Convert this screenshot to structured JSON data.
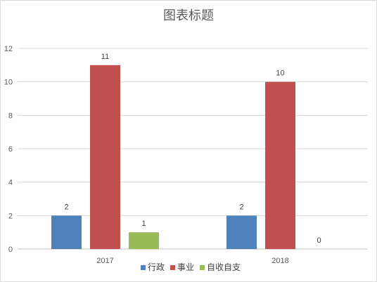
{
  "chart_data": {
    "type": "bar",
    "title": "图表标题",
    "categories": [
      "2017",
      "2018"
    ],
    "series": [
      {
        "name": "行政",
        "values": [
          2,
          2
        ],
        "color": "#4f81bd"
      },
      {
        "name": "事业",
        "values": [
          11,
          10
        ],
        "color": "#c0504d"
      },
      {
        "name": "自收自支",
        "values": [
          1,
          0
        ],
        "color": "#9bbb59"
      }
    ],
    "ylim": [
      0,
      12
    ],
    "yticks": [
      0,
      2,
      4,
      6,
      8,
      10,
      12
    ],
    "grid": true,
    "legend": "bottom",
    "data_labels": true
  }
}
